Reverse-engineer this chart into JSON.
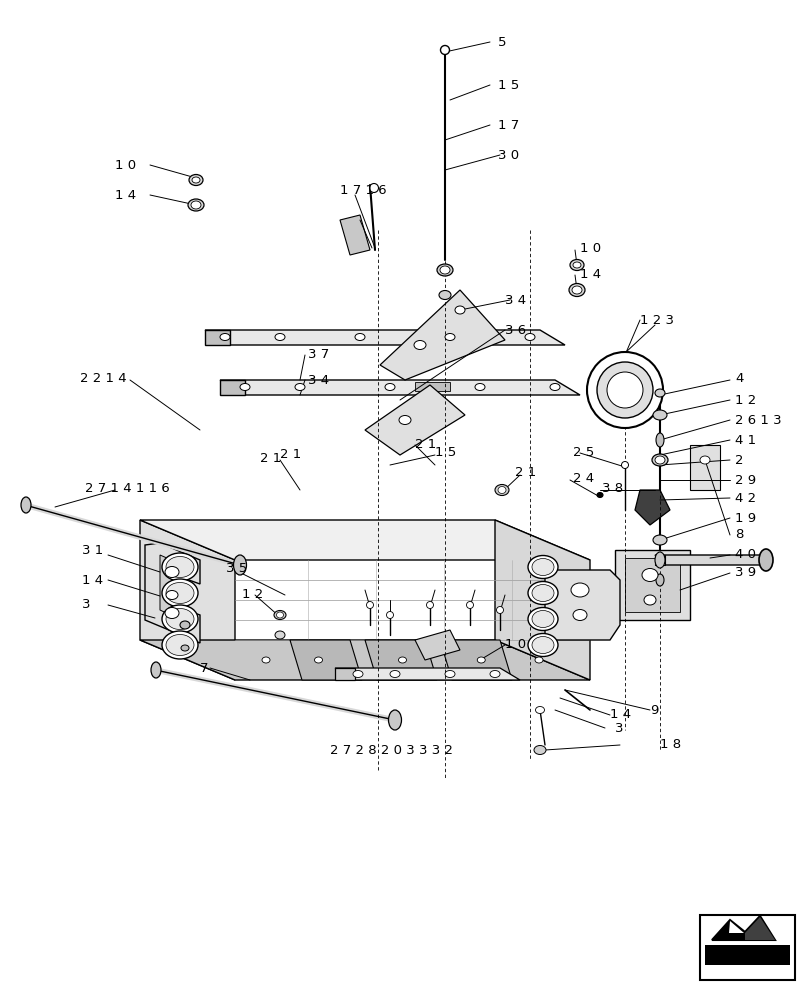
{
  "bg_color": "#ffffff",
  "lc": "#000000",
  "fig_width": 8.12,
  "fig_height": 10.0,
  "dpi": 100
}
